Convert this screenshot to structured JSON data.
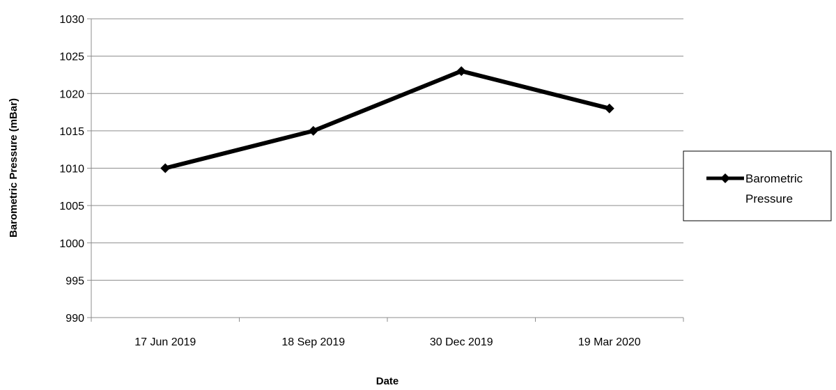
{
  "chart_data": {
    "type": "line",
    "title": "",
    "xlabel": "Date",
    "ylabel": "Barometric Pressure (mBar)",
    "categories": [
      "17 Jun 2019",
      "18 Sep 2019",
      "30 Dec 2019",
      "19 Mar 2020"
    ],
    "series": [
      {
        "name": "Barometric Pressure",
        "values": [
          1010,
          1015,
          1023,
          1018
        ],
        "color": "#000000",
        "marker": "diamond"
      }
    ],
    "ylim": [
      990,
      1030
    ],
    "y_ticks": [
      "990",
      "995",
      "1000",
      "1005",
      "1010",
      "1015",
      "1020",
      "1025",
      "1030"
    ],
    "grid": true,
    "legend_position": "right"
  }
}
